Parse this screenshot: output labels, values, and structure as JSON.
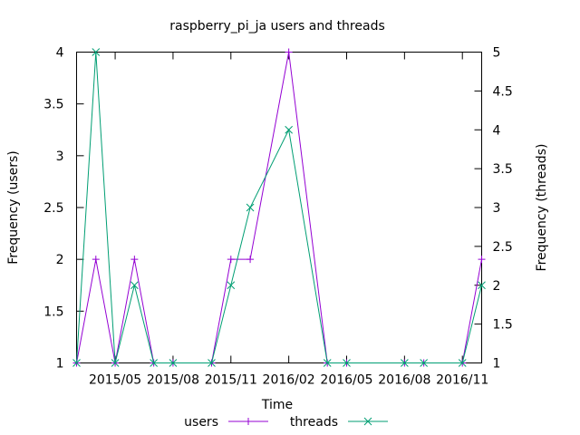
{
  "chart_data": {
    "type": "line",
    "title": "raspberry_pi_ja users and threads",
    "xlabel": "Time",
    "ylabel_left": "Frequency (users)",
    "ylabel_right": "Frequency (threads)",
    "x_ticks": [
      "2015/05",
      "2015/08",
      "2015/11",
      "2016/02",
      "2016/05",
      "2016/08",
      "2016/11"
    ],
    "x_tick_months": [
      4,
      7,
      10,
      13,
      16,
      19,
      22
    ],
    "x_range_months": [
      2,
      23
    ],
    "x": [
      "2015/03",
      "2015/04",
      "2015/05",
      "2015/06",
      "2015/07",
      "2015/08",
      "2015/10",
      "2015/11",
      "2015/12",
      "2016/02",
      "2016/04",
      "2016/05",
      "2016/08",
      "2016/09",
      "2016/11",
      "2016/12"
    ],
    "y_left_ticks": [
      "1",
      "1.5",
      "2",
      "2.5",
      "3",
      "3.5",
      "4"
    ],
    "y_left_range": [
      1,
      4
    ],
    "y_right_ticks": [
      "1",
      "1.5",
      "2",
      "2.5",
      "3",
      "3.5",
      "4",
      "4.5",
      "5"
    ],
    "y_right_range": [
      1,
      5
    ],
    "series": [
      {
        "name": "users",
        "axis": "left",
        "color": "#9400d3",
        "marker": "+",
        "values": [
          1,
          2,
          1,
          2,
          1,
          1,
          1,
          2,
          2,
          4,
          1,
          1,
          1,
          1,
          1,
          2
        ]
      },
      {
        "name": "threads",
        "axis": "right",
        "color": "#009e73",
        "marker": "x",
        "values": [
          1,
          5,
          1,
          2,
          1,
          1,
          1,
          2,
          3,
          4,
          1,
          1,
          1,
          1,
          1,
          2
        ]
      }
    ],
    "grid": false,
    "legend_position": "bottom"
  }
}
